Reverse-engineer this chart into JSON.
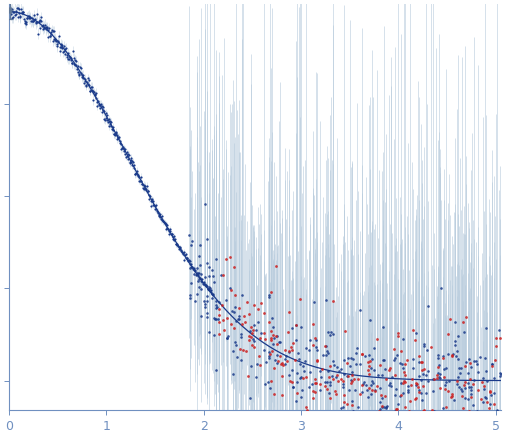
{
  "x_min": 0,
  "x_max": 5.05,
  "y_min": -0.08,
  "y_max": 1.02,
  "background_color": "#ffffff",
  "curve_color": "#1a3a8a",
  "error_bar_color_low": "#b8ccdd",
  "error_bar_color_high": "#b8ccdd",
  "blue_dot_color": "#1a3a8a",
  "red_dot_color": "#cc2020",
  "axis_color": "#7090c0",
  "tick_color": "#7090c0",
  "Rg": 1.0,
  "I0": 1.0,
  "seed": 12
}
